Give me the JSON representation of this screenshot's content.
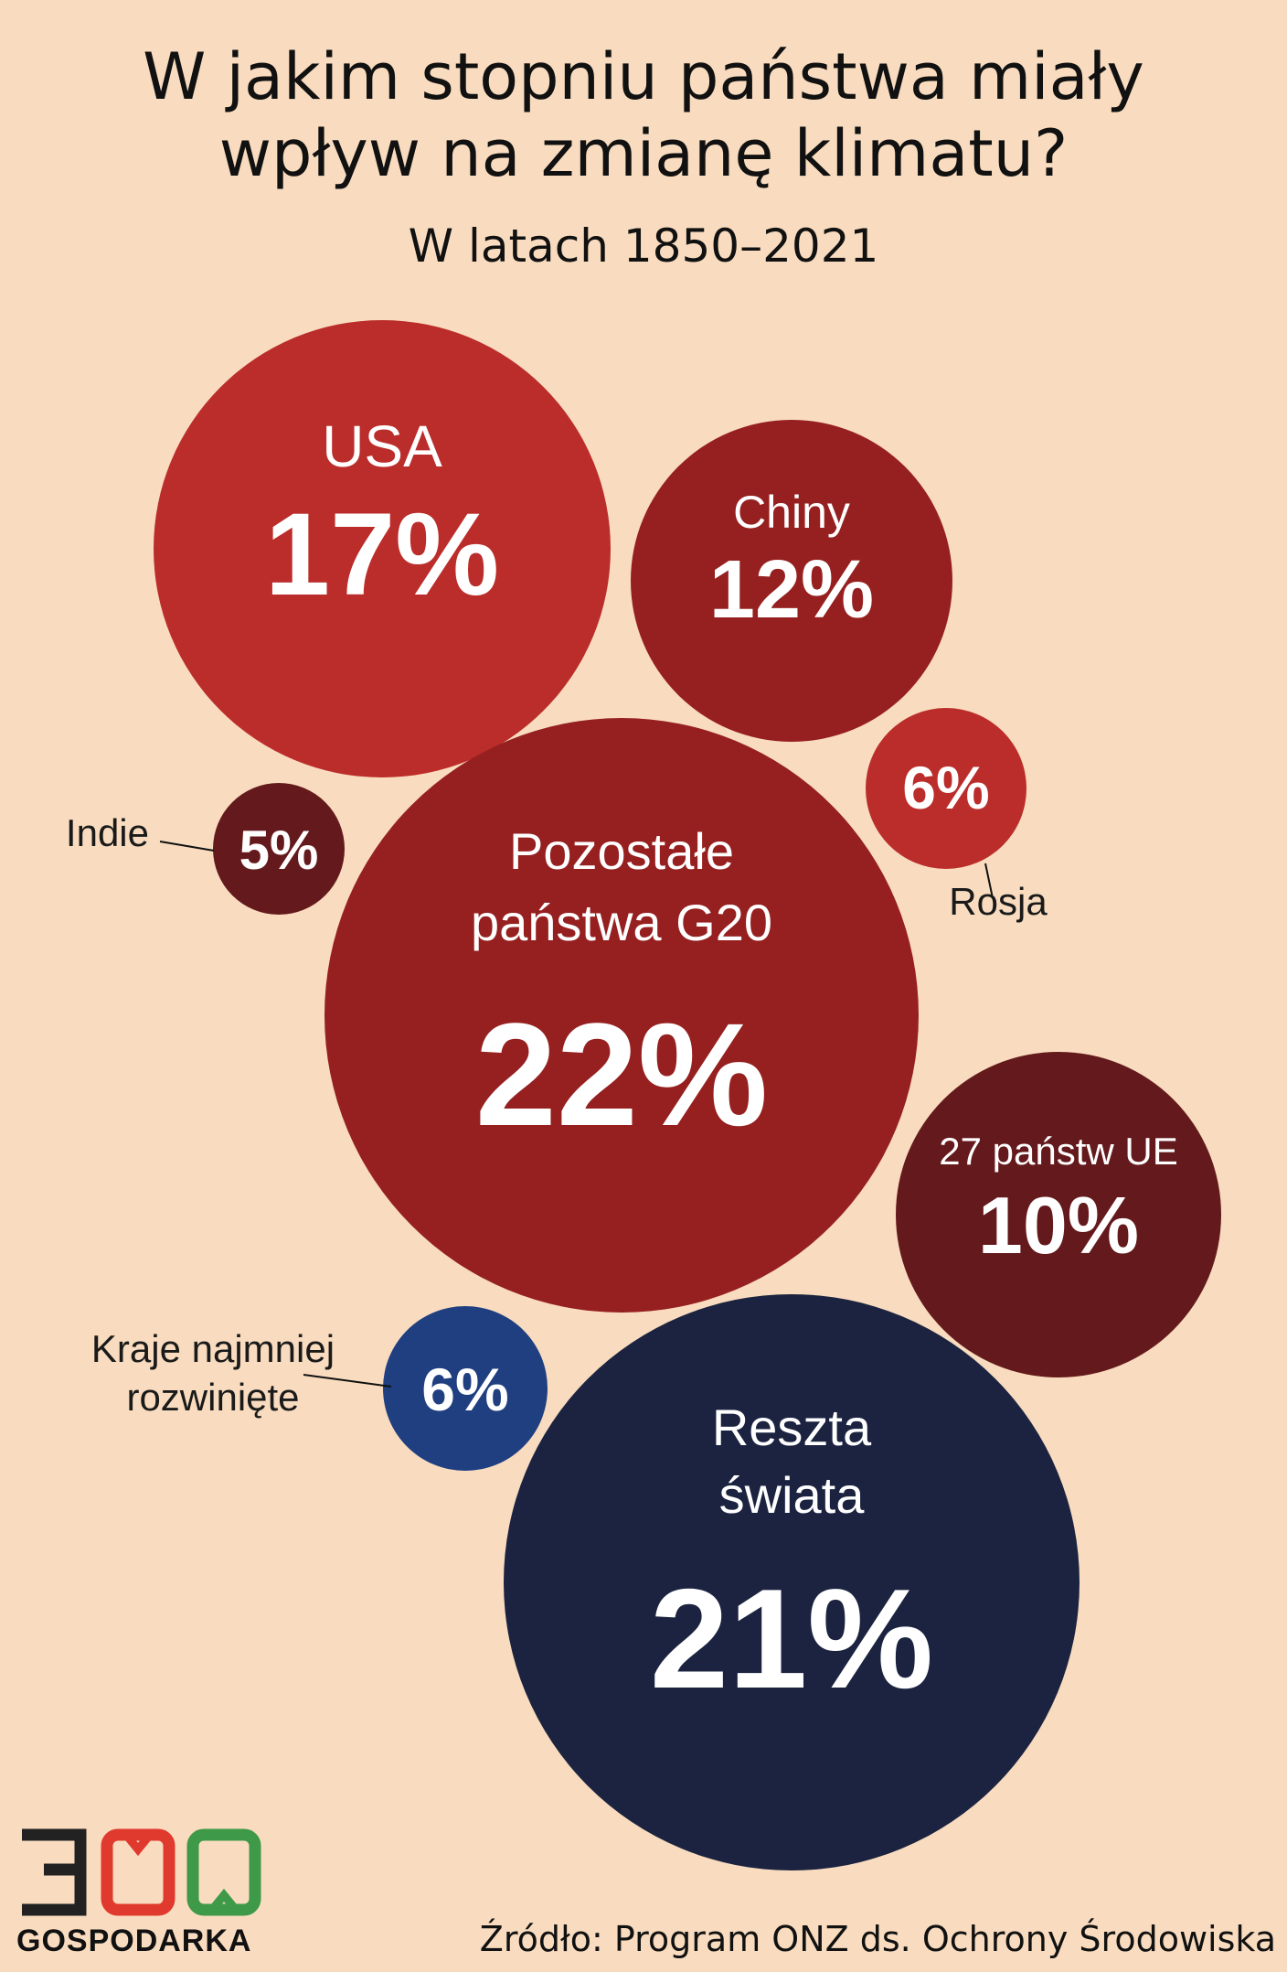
{
  "title_line1": "W jakim stopniu państwa miały",
  "title_line2": "wpływ na zmianę klimatu?",
  "subtitle": "W latach 1850–2021",
  "source": "Źródło: Program ONZ ds. Ochrony Środowiska",
  "logo": {
    "digits": [
      "3",
      "0",
      "0"
    ],
    "text": "GOSPODARKA",
    "colors": [
      "#222222",
      "#e03a2e",
      "#3e9a48"
    ]
  },
  "chart_data": {
    "type": "bubble",
    "unit": "%",
    "series": [
      {
        "name": "USA",
        "value": 17,
        "color": "#bb2d2a"
      },
      {
        "name": "Chiny",
        "value": 12,
        "color": "#962020"
      },
      {
        "name": "Rosja",
        "value": 6,
        "color": "#bb2d2a"
      },
      {
        "name": "Indie",
        "value": 5,
        "color": "#641a1c"
      },
      {
        "name": "Pozostałe państwa G20",
        "value": 22,
        "color": "#962020"
      },
      {
        "name": "27 państw UE",
        "value": 10,
        "color": "#641a1c"
      },
      {
        "name": "Kraje najmniej rozwinięte",
        "value": 6,
        "color": "#1f3f80"
      },
      {
        "name": "Reszta świata",
        "value": 21,
        "color": "#1b2340"
      }
    ]
  }
}
